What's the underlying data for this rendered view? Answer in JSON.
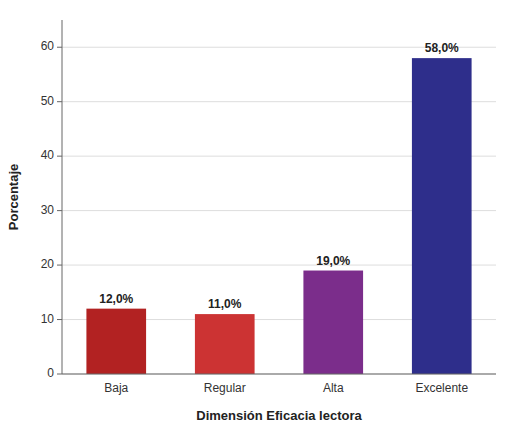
{
  "chart_data": {
    "type": "bar",
    "xlabel": "Dimensión Eficacia lectora",
    "ylabel": "Porcentaje",
    "categories": [
      "Baja",
      "Regular",
      "Alta",
      "Excelente"
    ],
    "values": [
      12.0,
      11.0,
      19.0,
      58.0
    ],
    "value_labels": [
      "12,0%",
      "11,0%",
      "19,0%",
      "58,0%"
    ],
    "data_labels": true,
    "colors": [
      "#B22222",
      "#CC3333",
      "#7B2D8B",
      "#2E2E8B"
    ],
    "ylim": [
      0,
      65
    ],
    "yticks": [
      0,
      10,
      20,
      30,
      40,
      50,
      60
    ],
    "grid": true
  }
}
